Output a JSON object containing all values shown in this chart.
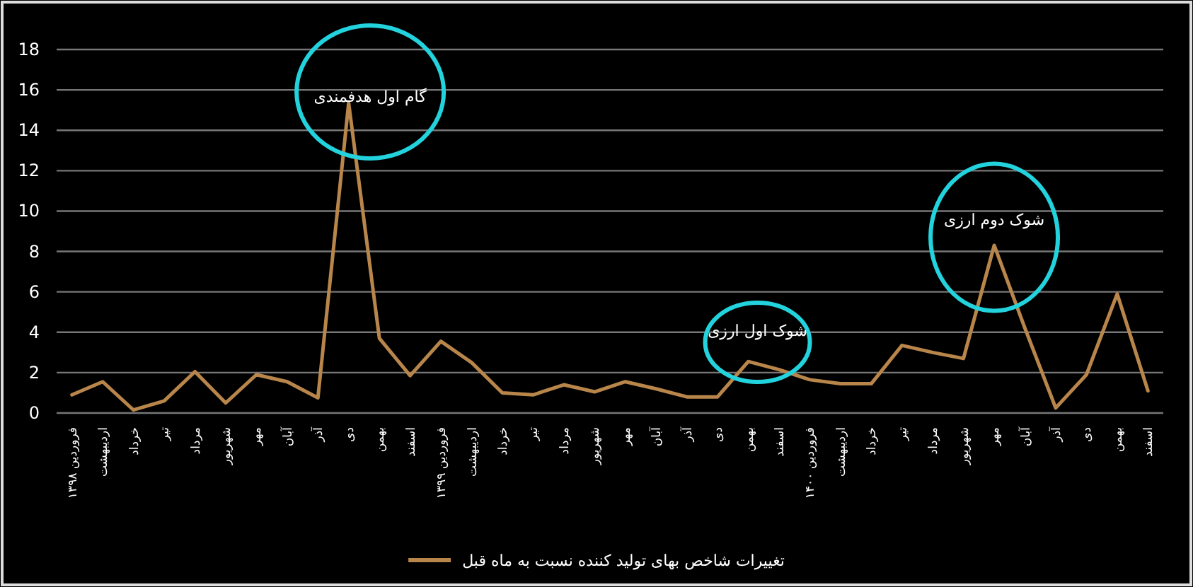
{
  "chart_data": {
    "type": "line",
    "categories": [
      "فروردین ۱۳۹۸",
      "اردیبهشت",
      "خرداد",
      "تیر",
      "مرداد",
      "شهریور",
      "مهر",
      "آبان",
      "آذر",
      "دی",
      "بهمن",
      "اسفند",
      "فروردین ۱۳۹۹",
      "اردیبهشت",
      "خرداد",
      "تیر",
      "مرداد",
      "شهریور",
      "مهر",
      "آبان",
      "آذر",
      "دی",
      "بهمن",
      "اسفند",
      "فروردین ۱۴۰۰",
      "اردیبهشت",
      "خرداد",
      "تیر",
      "مرداد",
      "شهریور",
      "مهر",
      "آبان",
      "آذر",
      "دی",
      "بهمن",
      "اسفند"
    ],
    "series": [
      {
        "name": "تغییرات شاخص بهای تولید کننده نسبت به ماه قبل",
        "color": "#b8854a",
        "values": [
          0.9,
          1.55,
          0.15,
          0.6,
          2.05,
          0.5,
          1.9,
          1.55,
          0.75,
          15.35,
          3.7,
          1.85,
          3.55,
          2.5,
          1.0,
          0.9,
          1.4,
          1.05,
          1.55,
          1.2,
          0.8,
          0.8,
          2.55,
          2.15,
          1.65,
          1.45,
          1.45,
          3.35,
          3.0,
          2.7,
          8.3,
          4.2,
          0.25,
          1.9,
          5.9,
          1.1
        ]
      }
    ],
    "annotations": [
      "گام اول هدفمندی",
      "شوک اول ارزی",
      "شوک دوم ارزی"
    ],
    "ylim": [
      0,
      18
    ],
    "yticks": [
      0,
      2,
      4,
      6,
      8,
      10,
      12,
      14,
      16,
      18
    ],
    "grid": "y",
    "legend": "bottom",
    "marker": "none",
    "line_style": "solid"
  }
}
